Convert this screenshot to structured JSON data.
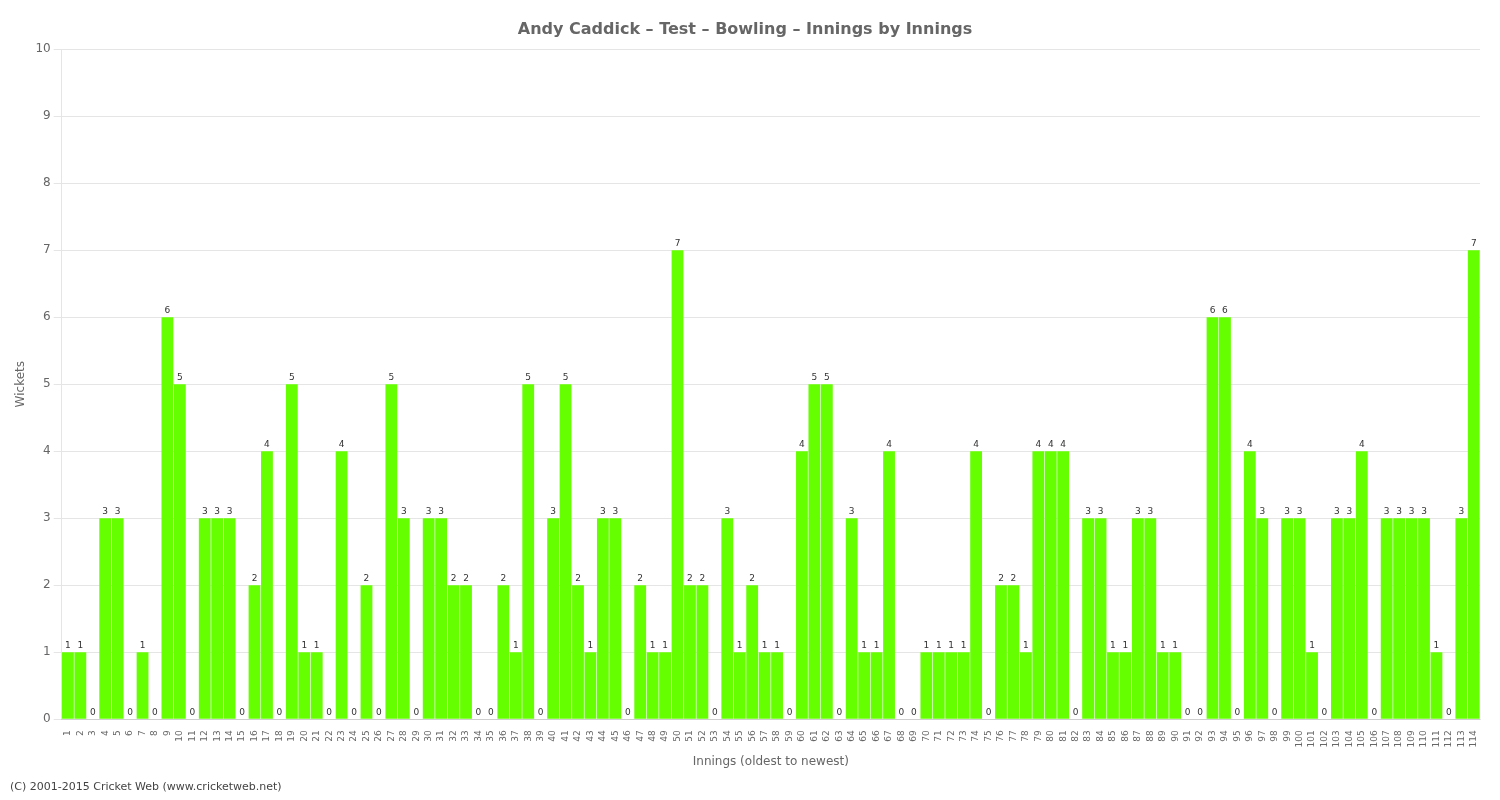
{
  "chart_data": {
    "type": "bar",
    "title": "Andy Caddick – Test – Bowling – Innings by Innings",
    "ylabel": "Wickets",
    "xlabel": "Innings (oldest to newest)",
    "annotations": [
      "(C) 2001-2015 Cricket Web (www.cricketweb.net)"
    ],
    "color": "#66ff00",
    "ylim": [
      0,
      10
    ],
    "yticks": [
      0,
      1,
      2,
      3,
      4,
      5,
      6,
      7,
      8,
      9,
      10
    ],
    "grid": true,
    "data_labels": true,
    "categories": [
      "1",
      "2",
      "3",
      "4",
      "5",
      "6",
      "7",
      "8",
      "9",
      "10",
      "11",
      "12",
      "13",
      "14",
      "15",
      "16",
      "17",
      "18",
      "19",
      "20",
      "21",
      "22",
      "23",
      "24",
      "25",
      "26",
      "27",
      "28",
      "29",
      "30",
      "31",
      "32",
      "33",
      "34",
      "35",
      "36",
      "37",
      "38",
      "39",
      "40",
      "41",
      "42",
      "43",
      "44",
      "45",
      "46",
      "47",
      "48",
      "49",
      "50",
      "51",
      "52",
      "53",
      "54",
      "55",
      "56",
      "57",
      "58",
      "59",
      "60",
      "61",
      "62",
      "63",
      "64",
      "65",
      "66",
      "67",
      "68",
      "69",
      "70",
      "71",
      "72",
      "73",
      "74",
      "75",
      "76",
      "77",
      "78",
      "79",
      "80",
      "81",
      "82",
      "83",
      "84",
      "85",
      "86",
      "87",
      "88",
      "89",
      "90",
      "91",
      "92",
      "93",
      "94",
      "95",
      "96",
      "97",
      "98",
      "99",
      "100",
      "101",
      "102",
      "103",
      "104",
      "105",
      "106",
      "107",
      "108",
      "109",
      "110",
      "111",
      "112",
      "113",
      "114"
    ],
    "values": [
      1,
      1,
      0,
      3,
      3,
      0,
      1,
      0,
      6,
      5,
      0,
      3,
      3,
      3,
      0,
      2,
      4,
      0,
      5,
      1,
      1,
      0,
      4,
      0,
      2,
      0,
      5,
      3,
      0,
      3,
      3,
      2,
      2,
      0,
      0,
      2,
      1,
      5,
      0,
      3,
      5,
      2,
      1,
      3,
      3,
      0,
      2,
      1,
      1,
      7,
      2,
      2,
      0,
      3,
      1,
      2,
      1,
      1,
      0,
      4,
      5,
      5,
      0,
      3,
      1,
      1,
      4,
      0,
      0,
      1,
      1,
      1,
      1,
      4,
      0,
      2,
      2,
      1,
      4,
      4,
      4,
      0,
      3,
      3,
      1,
      1,
      3,
      3,
      1,
      1,
      0,
      0,
      6,
      6,
      0,
      4,
      3,
      0,
      3,
      3,
      1,
      0,
      3,
      3,
      4,
      0,
      3,
      3,
      3,
      3,
      1,
      0,
      3,
      7
    ]
  }
}
